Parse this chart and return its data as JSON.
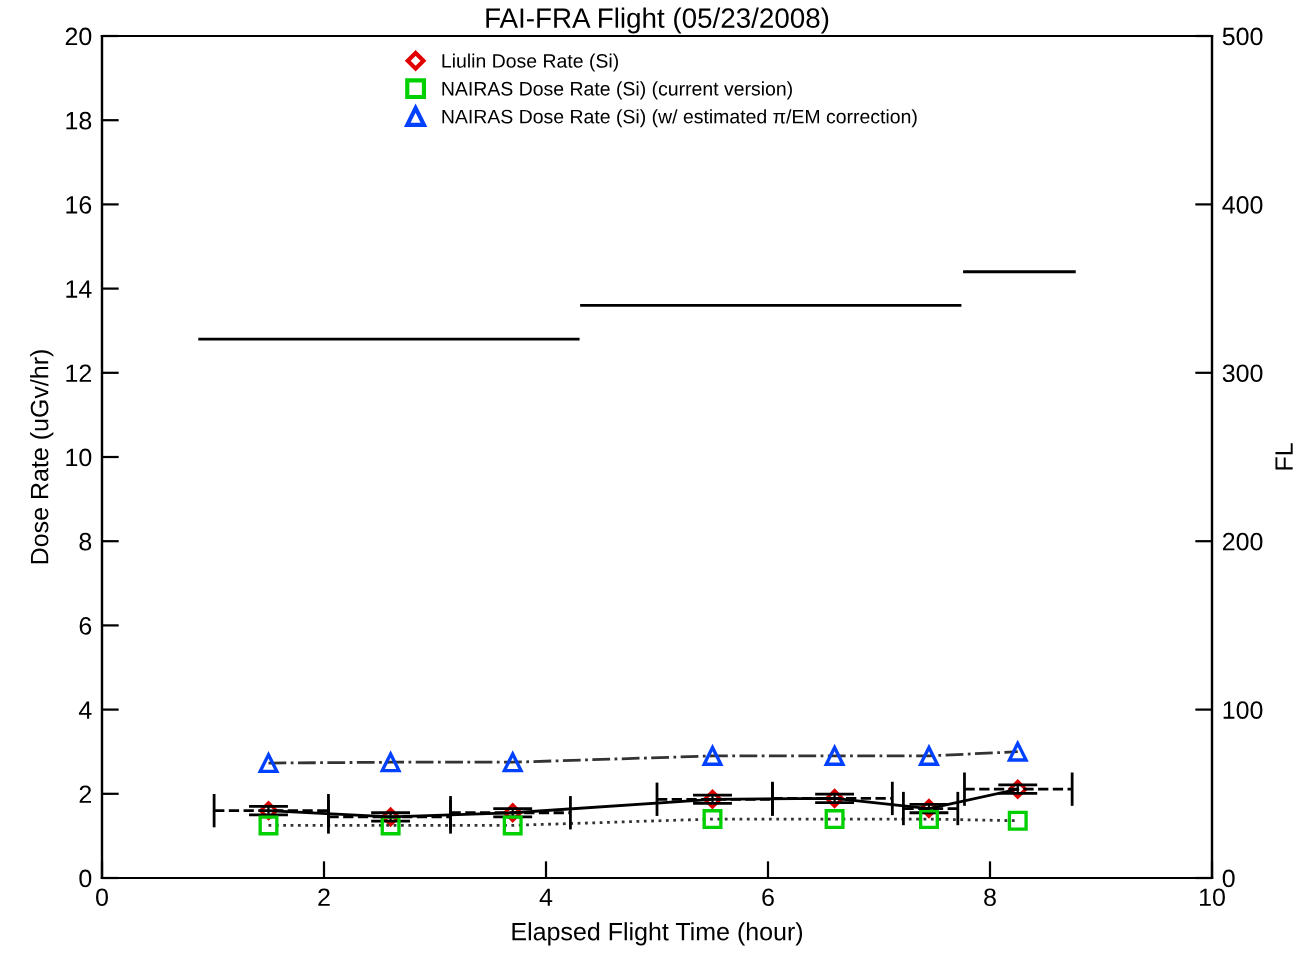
{
  "chart_data": {
    "type": "scatter",
    "title": "FAI-FRA Flight (05/23/2008)",
    "xlabel": "Elapsed Flight Time (hour)",
    "ylabel": "Dose Rate (uGv/hr)",
    "y2label": "FL",
    "xlim": [
      0,
      10
    ],
    "xticks": [
      0,
      2,
      4,
      6,
      8,
      10
    ],
    "ylim": [
      0,
      20
    ],
    "yticks": [
      0,
      2,
      4,
      6,
      8,
      10,
      12,
      14,
      16,
      18,
      20
    ],
    "y2lim": [
      0,
      500
    ],
    "y2ticks": [
      0,
      100,
      200,
      300,
      400,
      500
    ],
    "legend": "top",
    "grid": false,
    "series": [
      {
        "name": "Liulin Dose Rate (Si)",
        "marker": "diamond",
        "color": "#e00000",
        "x": [
          1.5,
          2.6,
          3.7,
          5.5,
          6.6,
          7.45,
          8.25
        ],
        "values": [
          1.6,
          1.45,
          1.55,
          1.87,
          1.89,
          1.65,
          2.11
        ],
        "errors": [
          0.1,
          0.1,
          0.1,
          0.1,
          0.1,
          0.1,
          0.1
        ]
      },
      {
        "name": "NAIRAS Dose Rate (Si) (current version)",
        "type": "line",
        "marker": "square",
        "line_style": "dotted",
        "color": "#00d000",
        "x": [
          1.5,
          2.6,
          3.7,
          5.5,
          6.6,
          7.45,
          8.25
        ],
        "values": [
          1.25,
          1.25,
          1.25,
          1.4,
          1.4,
          1.4,
          1.36
        ]
      },
      {
        "name": "NAIRAS Dose Rate (Si) (w/ estimated π/EM correction)",
        "type": "line",
        "marker": "triangle",
        "line_style": "dashdot",
        "color": "#0040ff",
        "x": [
          1.5,
          2.6,
          3.7,
          5.5,
          6.6,
          7.45,
          8.25
        ],
        "values": [
          2.73,
          2.75,
          2.75,
          2.9,
          2.9,
          2.9,
          3.0
        ]
      },
      {
        "type": "line",
        "marker": "none",
        "line_style": "solid",
        "color": "#000000",
        "x": [
          1.5,
          2.6,
          3.7,
          5.5,
          6.6,
          7.45,
          8.25
        ],
        "values": [
          1.6,
          1.45,
          1.55,
          1.87,
          1.89,
          1.65,
          2.11
        ],
        "xerrors": [
          [
            1.01,
            2.04
          ],
          [
            2.04,
            3.14
          ],
          [
            3.14,
            4.22
          ],
          [
            5.0,
            6.04
          ],
          [
            6.04,
            7.12
          ],
          [
            7.22,
            7.71
          ],
          [
            7.77,
            8.74
          ]
        ]
      },
      {
        "type": "step",
        "axis": "y2",
        "color": "#000000",
        "x": [
          0.88,
          4.29,
          4.32,
          7.73,
          7.77,
          8.76
        ],
        "values": [
          320,
          320,
          340,
          340,
          360,
          360
        ]
      }
    ]
  }
}
